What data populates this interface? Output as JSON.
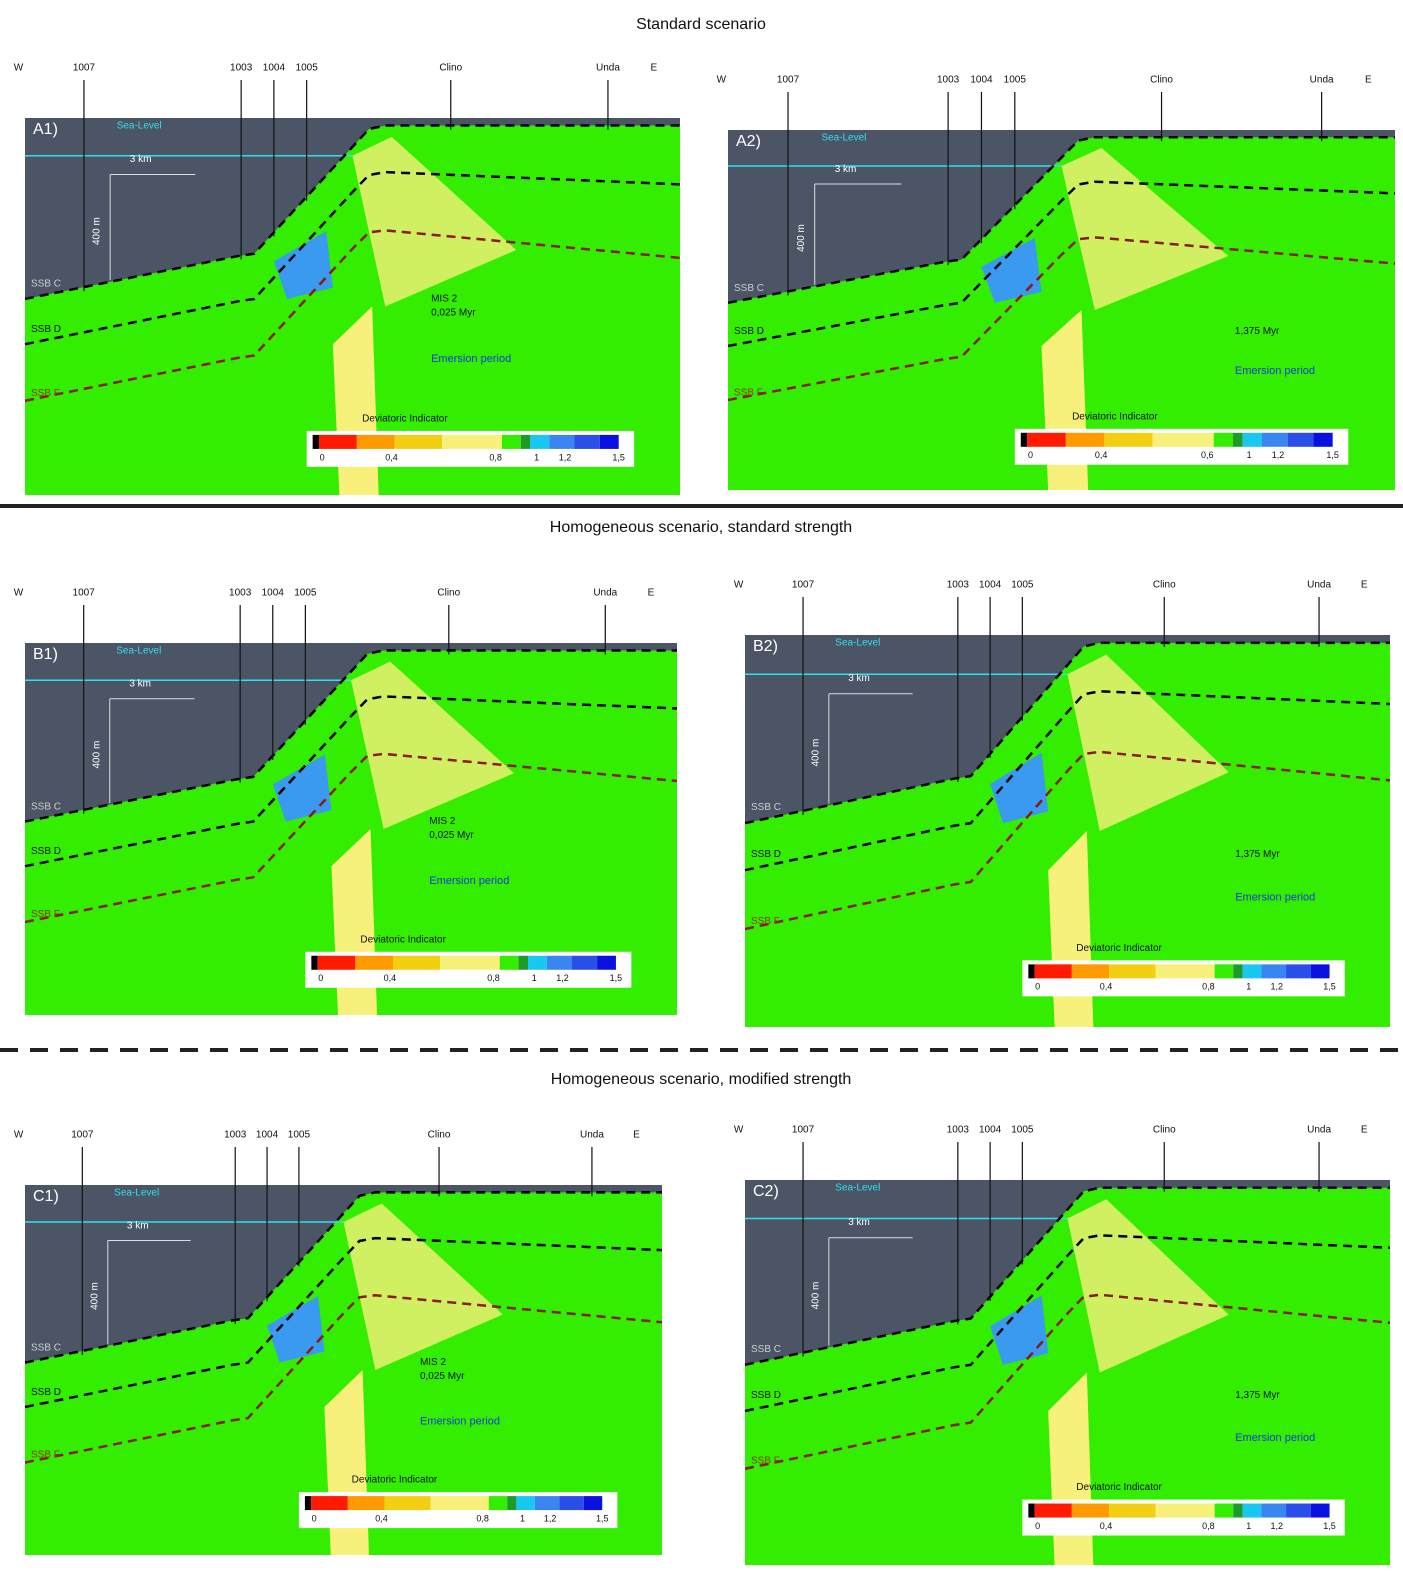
{
  "sections": [
    {
      "title": "Standard scenario",
      "panels": [
        {
          "label": "A1)",
          "wells": [
            "W",
            "1007",
            "1003",
            "1004",
            "1005",
            "Clino",
            "Unda",
            "E"
          ],
          "sea_level": "Sea-Level",
          "scale_km": "3 km",
          "scale_m": "400 m",
          "boundaries": [
            "SSB C",
            "SSB D",
            "SSB F"
          ],
          "age": [
            "MIS 2",
            "0,025 Myr"
          ],
          "period": "Emersion period",
          "colorbar": {
            "title": "Deviatoric Indicator",
            "ticks": [
              "0",
              "0,4",
              "0,8",
              "1",
              "1,2",
              "1,5"
            ]
          }
        },
        {
          "label": "A2)",
          "wells": [
            "W",
            "1007",
            "1003",
            "1004",
            "1005",
            "Clino",
            "Unda",
            "E"
          ],
          "sea_level": "Sea-Level",
          "scale_km": "3 km",
          "scale_m": "400 m",
          "boundaries": [
            "SSB C",
            "SSB D",
            "SSB F"
          ],
          "age": [
            "1,375 Myr"
          ],
          "period": "Emersion period",
          "colorbar": {
            "title": "Deviatoric Indicator",
            "ticks": [
              "0",
              "0,4",
              "0,6",
              "1",
              "1,2",
              "1,5"
            ]
          }
        }
      ]
    },
    {
      "title": "Homogeneous scenario, standard strength",
      "panels": [
        {
          "label": "B1)",
          "wells": [
            "W",
            "1007",
            "1003",
            "1004",
            "1005",
            "Clino",
            "Unda",
            "E"
          ],
          "sea_level": "Sea-Level",
          "scale_km": "3 km",
          "scale_m": "400 m",
          "boundaries": [
            "SSB C",
            "SSB D",
            "SSB F"
          ],
          "age": [
            "MIS 2",
            "0,025 Myr"
          ],
          "period": "Emersion period",
          "colorbar": {
            "title": "Deviatoric Indicator",
            "ticks": [
              "0",
              "0,4",
              "0,8",
              "1",
              "1,2",
              "1,5"
            ]
          }
        },
        {
          "label": "B2)",
          "wells": [
            "W",
            "1007",
            "1003",
            "1004",
            "1005",
            "Clino",
            "Unda",
            "E"
          ],
          "sea_level": "Sea-Level",
          "scale_km": "3 km",
          "scale_m": "400 m",
          "boundaries": [
            "SSB C",
            "SSB D",
            "SSB F"
          ],
          "age": [
            "1,375 Myr"
          ],
          "period": "Emersion period",
          "colorbar": {
            "title": "Deviatoric Indicator",
            "ticks": [
              "0",
              "0,4",
              "0,8",
              "1",
              "1,2",
              "1,5"
            ]
          }
        }
      ]
    },
    {
      "title": "Homogeneous scenario, modified strength",
      "panels": [
        {
          "label": "C1)",
          "wells": [
            "W",
            "1007",
            "1003",
            "1004",
            "1005",
            "Clino",
            "Unda",
            "E"
          ],
          "sea_level": "Sea-Level",
          "scale_km": "3 km",
          "scale_m": "400 m",
          "boundaries": [
            "SSB C",
            "SSB D",
            "SSB F"
          ],
          "age": [
            "MIS 2",
            "0,025 Myr"
          ],
          "period": "Emersion period",
          "colorbar": {
            "title": "Deviatoric Indicator",
            "ticks": [
              "0",
              "0,4",
              "0,8",
              "1",
              "1,2",
              "1,5"
            ]
          }
        },
        {
          "label": "C2)",
          "wells": [
            "W",
            "1007",
            "1003",
            "1004",
            "1005",
            "Clino",
            "Unda",
            "E"
          ],
          "sea_level": "Sea-Level",
          "scale_km": "3 km",
          "scale_m": "400 m",
          "boundaries": [
            "SSB C",
            "SSB D",
            "SSB F"
          ],
          "age": [
            "1,375 Myr"
          ],
          "period": "Emersion period",
          "colorbar": {
            "title": "Deviatoric Indicator",
            "ticks": [
              "0",
              "0,4",
              "0,8",
              "1",
              "1,2",
              "1,5"
            ]
          }
        }
      ]
    }
  ]
}
